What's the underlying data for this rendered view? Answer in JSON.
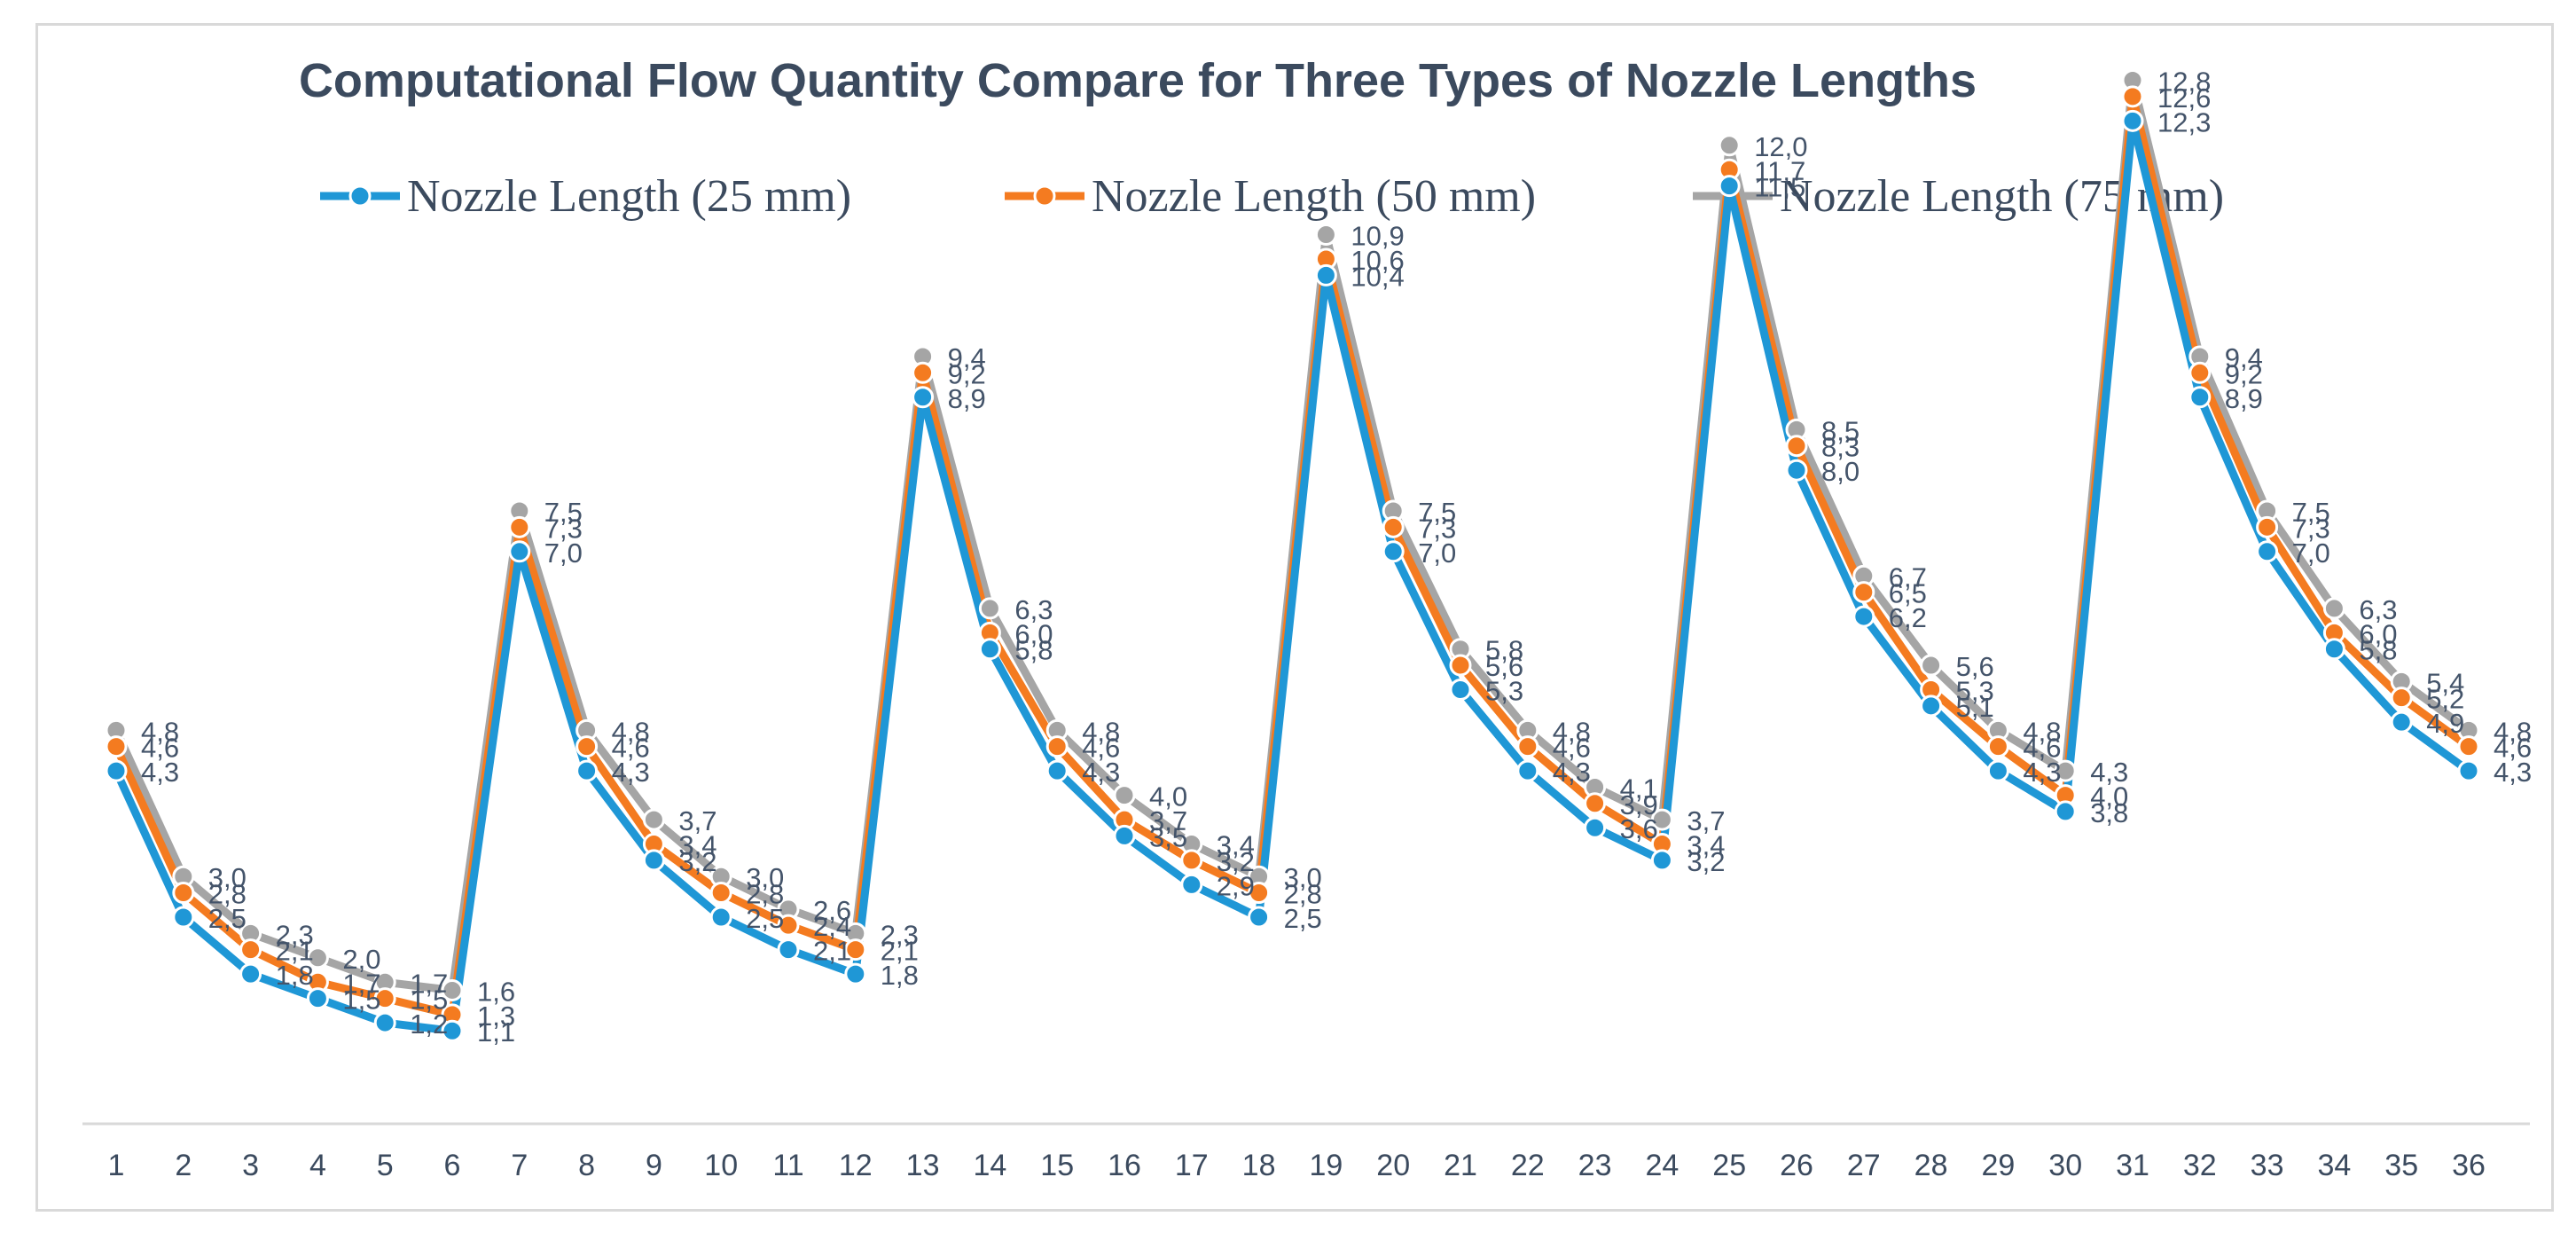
{
  "chart_data": {
    "type": "line",
    "title": "Computational Flow Quantity Compare for Three Types of Nozzle Lengths",
    "xlabel": "",
    "ylabel": "",
    "ylim": [
      0,
      14
    ],
    "grid": false,
    "legend_position": "top",
    "categories": [
      "1",
      "2",
      "3",
      "4",
      "5",
      "6",
      "7",
      "8",
      "9",
      "10",
      "11",
      "12",
      "13",
      "14",
      "15",
      "16",
      "17",
      "18",
      "19",
      "20",
      "21",
      "22",
      "23",
      "24",
      "25",
      "26",
      "27",
      "28",
      "29",
      "30",
      "31",
      "32",
      "33",
      "34",
      "35",
      "36"
    ],
    "series": [
      {
        "name": "Nozzle Length (25 mm)",
        "color": "#1f97d6",
        "values": [
          4.3,
          2.5,
          1.8,
          1.5,
          1.2,
          1.1,
          7.0,
          4.3,
          3.2,
          2.5,
          2.1,
          1.8,
          8.9,
          5.8,
          4.3,
          3.5,
          2.9,
          2.5,
          10.4,
          7.0,
          5.3,
          4.3,
          3.6,
          3.2,
          11.5,
          8.0,
          6.2,
          5.1,
          4.3,
          3.8,
          12.3,
          8.9,
          7.0,
          5.8,
          4.9,
          4.3
        ],
        "labels": [
          "4,3",
          "2,5",
          "1,8",
          "1,5",
          "1,2",
          "1,1",
          "7,0",
          "4,3",
          "3,2",
          "2,5",
          "2,1",
          "1,8",
          "8,9",
          "5,8",
          "4,3",
          "3,5",
          "2,9",
          "2,5",
          "10,4",
          "7,0",
          "5,3",
          "4,3",
          "3,6",
          "3,2",
          "11,5",
          "8,0",
          "6,2",
          "5,1",
          "4,3",
          "3,8",
          "12,3",
          "8,9",
          "7,0",
          "5,8",
          "4,9",
          "4,3"
        ]
      },
      {
        "name": "Nozzle Length (50 mm)",
        "color": "#f47b20",
        "values": [
          4.6,
          2.8,
          2.1,
          1.7,
          1.5,
          1.3,
          7.3,
          4.6,
          3.4,
          2.8,
          2.4,
          2.1,
          9.2,
          6.0,
          4.6,
          3.7,
          3.2,
          2.8,
          10.6,
          7.3,
          5.6,
          4.6,
          3.9,
          3.4,
          11.7,
          8.3,
          6.5,
          5.3,
          4.6,
          4.0,
          12.6,
          9.2,
          7.3,
          6.0,
          5.2,
          4.6
        ],
        "labels": [
          "4,6",
          "2,8",
          "2,1",
          "1,7",
          "1,5",
          "1,3",
          "7,3",
          "4,6",
          "3,4",
          "2,8",
          "2,4",
          "2,1",
          "9,2",
          "6,0",
          "4,6",
          "3,7",
          "3,2",
          "2,8",
          "10,6",
          "7,3",
          "5,6",
          "4,6",
          "3,9",
          "3,4",
          "11,7",
          "8,3",
          "6,5",
          "5,3",
          "4,6",
          "4,0",
          "12,6",
          "9,2",
          "7,3",
          "6,0",
          "5,2",
          "4,6"
        ]
      },
      {
        "name": "Nozzle Length (75 mm)",
        "color": "#a5a5a5",
        "values": [
          4.8,
          3.0,
          2.3,
          2.0,
          1.7,
          1.6,
          7.5,
          4.8,
          3.7,
          3.0,
          2.6,
          2.3,
          9.4,
          6.3,
          4.8,
          4.0,
          3.4,
          3.0,
          10.9,
          7.5,
          5.8,
          4.8,
          4.1,
          3.7,
          12.0,
          8.5,
          6.7,
          5.6,
          4.8,
          4.3,
          12.8,
          9.4,
          7.5,
          6.3,
          5.4,
          4.8
        ],
        "labels": [
          "4,8",
          "3,0",
          "2,3",
          "2,0",
          "1,7",
          "1,6",
          "7,5",
          "4,8",
          "3,7",
          "3,0",
          "2,6",
          "2,3",
          "9,4",
          "6,3",
          "4,8",
          "4,0",
          "3,4",
          "3,0",
          "10,9",
          "7,5",
          "5,8",
          "4,8",
          "4,1",
          "3,7",
          "12,0",
          "8,5",
          "6,7",
          "5,6",
          "4,8",
          "4,3",
          "12,8",
          "9,4",
          "7,5",
          "6,3",
          "5,4",
          "4,8"
        ]
      }
    ]
  }
}
